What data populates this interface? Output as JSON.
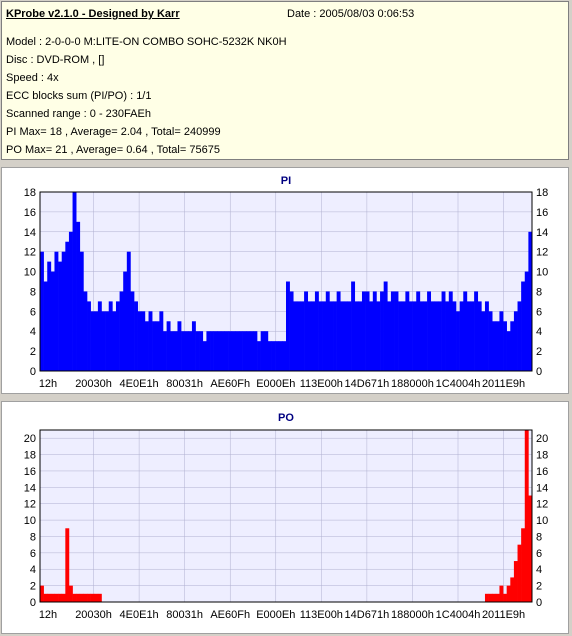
{
  "info": {
    "title": "KProbe v2.1.0 - Designed by Karr",
    "date": "Date : 2005/08/03 0:06:53",
    "model": "Model : 2-0-0-0 M:LITE-ON COMBO SOHC-5232K NK0H",
    "disc": "Disc : DVD-ROM ,  []",
    "speed": "Speed : 4x",
    "ecc": "ECC blocks sum (PI/PO) : 1/1",
    "range": "Scanned range : 0 - 230FAEh",
    "pi_stats": "PI Max= 18 , Average= 2.04 , Total= 240999",
    "po_stats": "PO Max= 21 , Average= 0.64 , Total= 75675"
  },
  "colors": {
    "pi": "#0000ff",
    "po": "#ff0000",
    "max_line": "#000000"
  },
  "chart_data": [
    {
      "type": "area",
      "title": "PI",
      "xlabel": "",
      "ylabel": "",
      "ylim": [
        0,
        18
      ],
      "yticks": [
        0,
        2,
        4,
        6,
        8,
        10,
        12,
        14,
        16,
        18
      ],
      "xtick_labels": [
        "12h",
        "20030h",
        "4E0E1h",
        "80031h",
        "AE60Fh",
        "E000Eh",
        "113E00h",
        "14D671h",
        "188000h",
        "1C4004h",
        "2011E9h"
      ],
      "max_line": 18,
      "series": [
        {
          "values": [
            12,
            9,
            11,
            10,
            12,
            11,
            12,
            13,
            14,
            18,
            15,
            12,
            8,
            7,
            6,
            6,
            7,
            6,
            6,
            7,
            6,
            7,
            8,
            10,
            12,
            8,
            7,
            6,
            6,
            5,
            6,
            5,
            5,
            6,
            4,
            5,
            4,
            4,
            5,
            4,
            4,
            4,
            5,
            4,
            4,
            3,
            4,
            4,
            4,
            4,
            4,
            4,
            4,
            4,
            4,
            4,
            4,
            4,
            4,
            4,
            3,
            4,
            4,
            3,
            3,
            3,
            3,
            3,
            9,
            8,
            7,
            7,
            7,
            8,
            7,
            7,
            8,
            7,
            7,
            8,
            7,
            7,
            8,
            7,
            7,
            7,
            9,
            7,
            7,
            8,
            8,
            7,
            8,
            7,
            8,
            9,
            7,
            8,
            8,
            7,
            7,
            8,
            7,
            7,
            8,
            7,
            7,
            8,
            7,
            7,
            7,
            8,
            7,
            8,
            7,
            6,
            7,
            8,
            7,
            7,
            8,
            7,
            6,
            7,
            6,
            5,
            5,
            6,
            5,
            4,
            5,
            6,
            7,
            9,
            10,
            14
          ]
        }
      ]
    },
    {
      "type": "area",
      "title": "PO",
      "xlabel": "",
      "ylabel": "",
      "ylim": [
        0,
        21
      ],
      "yticks": [
        0,
        2,
        4,
        6,
        8,
        10,
        12,
        14,
        16,
        18,
        20
      ],
      "xtick_labels": [
        "12h",
        "20030h",
        "4E0E1h",
        "80031h",
        "AE60Fh",
        "E000Eh",
        "113E00h",
        "14D671h",
        "188000h",
        "1C4004h",
        "2011E9h"
      ],
      "max_line": 21,
      "series": [
        {
          "values": [
            2,
            1,
            1,
            1,
            1,
            1,
            1,
            9,
            2,
            1,
            1,
            1,
            1,
            1,
            1,
            1,
            1,
            0,
            0,
            0,
            0,
            0,
            0,
            0,
            0,
            0,
            0,
            0,
            0,
            0,
            0,
            0,
            0,
            0,
            0,
            0,
            0,
            0,
            0,
            0,
            0,
            0,
            0,
            0,
            0,
            0,
            0,
            0,
            0,
            0,
            0,
            0,
            0,
            0,
            0,
            0,
            0,
            0,
            0,
            0,
            0,
            0,
            0,
            0,
            0,
            0,
            0,
            0,
            0,
            0,
            0,
            0,
            0,
            0,
            0,
            0,
            0,
            0,
            0,
            0,
            0,
            0,
            0,
            0,
            0,
            0,
            0,
            0,
            0,
            0,
            0,
            0,
            0,
            0,
            0,
            0,
            0,
            0,
            0,
            0,
            0,
            0,
            0,
            0,
            0,
            0,
            0,
            0,
            0,
            0,
            0,
            0,
            0,
            0,
            0,
            0,
            0,
            0,
            0,
            0,
            0,
            0,
            0,
            1,
            1,
            1,
            1,
            2,
            1,
            2,
            3,
            5,
            7,
            9,
            21,
            13
          ]
        }
      ]
    }
  ]
}
